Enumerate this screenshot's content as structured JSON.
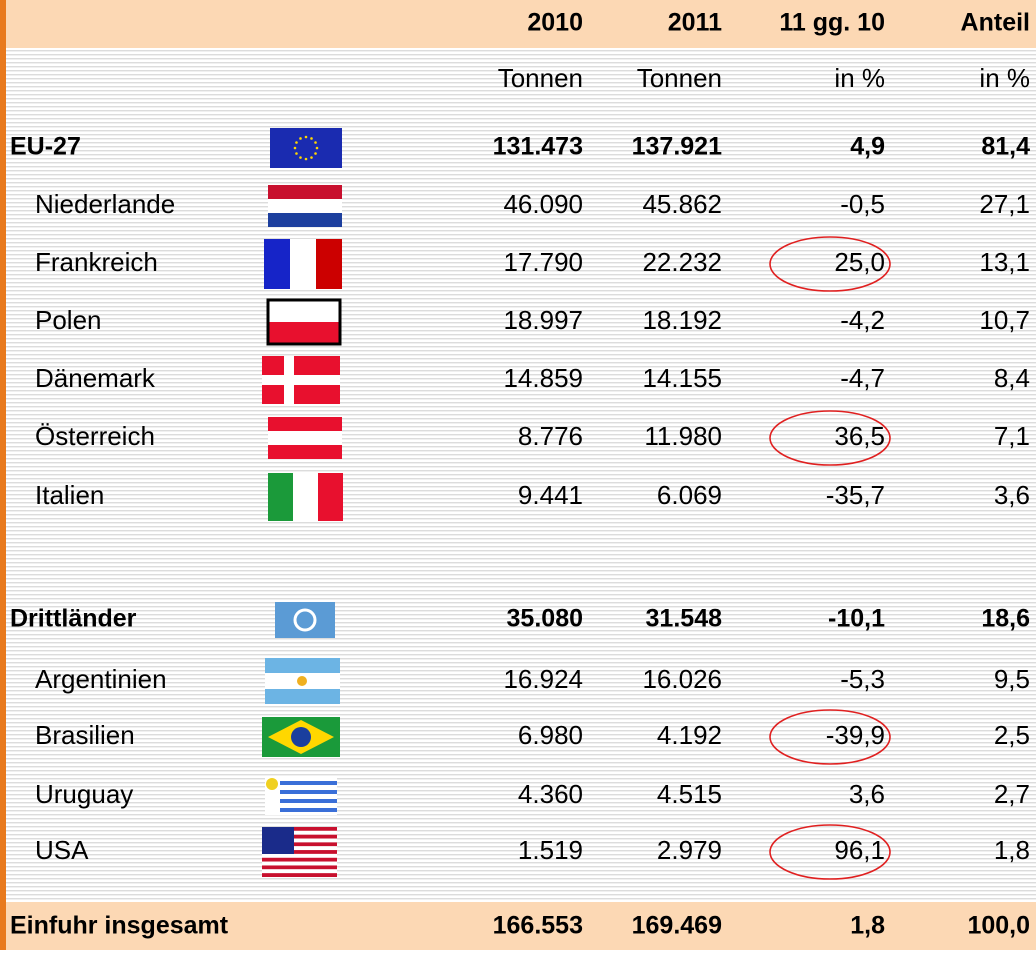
{
  "header": {
    "columns": [
      "2010",
      "2011",
      "11 gg. 10",
      "Anteil"
    ],
    "units": [
      "Tonnen",
      "Tonnen",
      "in %",
      "in %"
    ]
  },
  "groups": [
    {
      "name": "EU-27",
      "values": [
        "131.473",
        "137.921",
        "4,9",
        "81,4"
      ],
      "countries": [
        {
          "name": "Niederlande",
          "values": [
            "46.090",
            "45.862",
            "-0,5",
            "27,1"
          ]
        },
        {
          "name": "Frankreich",
          "values": [
            "17.790",
            "22.232",
            "25,0",
            "13,1"
          ]
        },
        {
          "name": "Polen",
          "values": [
            "18.997",
            "18.192",
            "-4,2",
            "10,7"
          ]
        },
        {
          "name": "Dänemark",
          "values": [
            "14.859",
            "14.155",
            "-4,7",
            "8,4"
          ]
        },
        {
          "name": "Österreich",
          "values": [
            "8.776",
            "11.980",
            "36,5",
            "7,1"
          ]
        },
        {
          "name": "Italien",
          "values": [
            "9.441",
            "6.069",
            "-35,7",
            "3,6"
          ]
        }
      ]
    },
    {
      "name": "Drittländer",
      "values": [
        "35.080",
        "31.548",
        "-10,1",
        "18,6"
      ],
      "countries": [
        {
          "name": "Argentinien",
          "values": [
            "16.924",
            "16.026",
            "-5,3",
            "9,5"
          ]
        },
        {
          "name": "Brasilien",
          "values": [
            "6.980",
            "4.192",
            "-39,9",
            "2,5"
          ]
        },
        {
          "name": "Uruguay",
          "values": [
            "4.360",
            "4.515",
            "3,6",
            "2,7"
          ]
        },
        {
          "name": "USA",
          "values": [
            "1.519",
            "2.979",
            "96,1",
            "1,8"
          ]
        }
      ]
    }
  ],
  "total": {
    "name": "Einfuhr insgesamt",
    "values": [
      "166.553",
      "169.469",
      "1,8",
      "100,0"
    ]
  }
}
